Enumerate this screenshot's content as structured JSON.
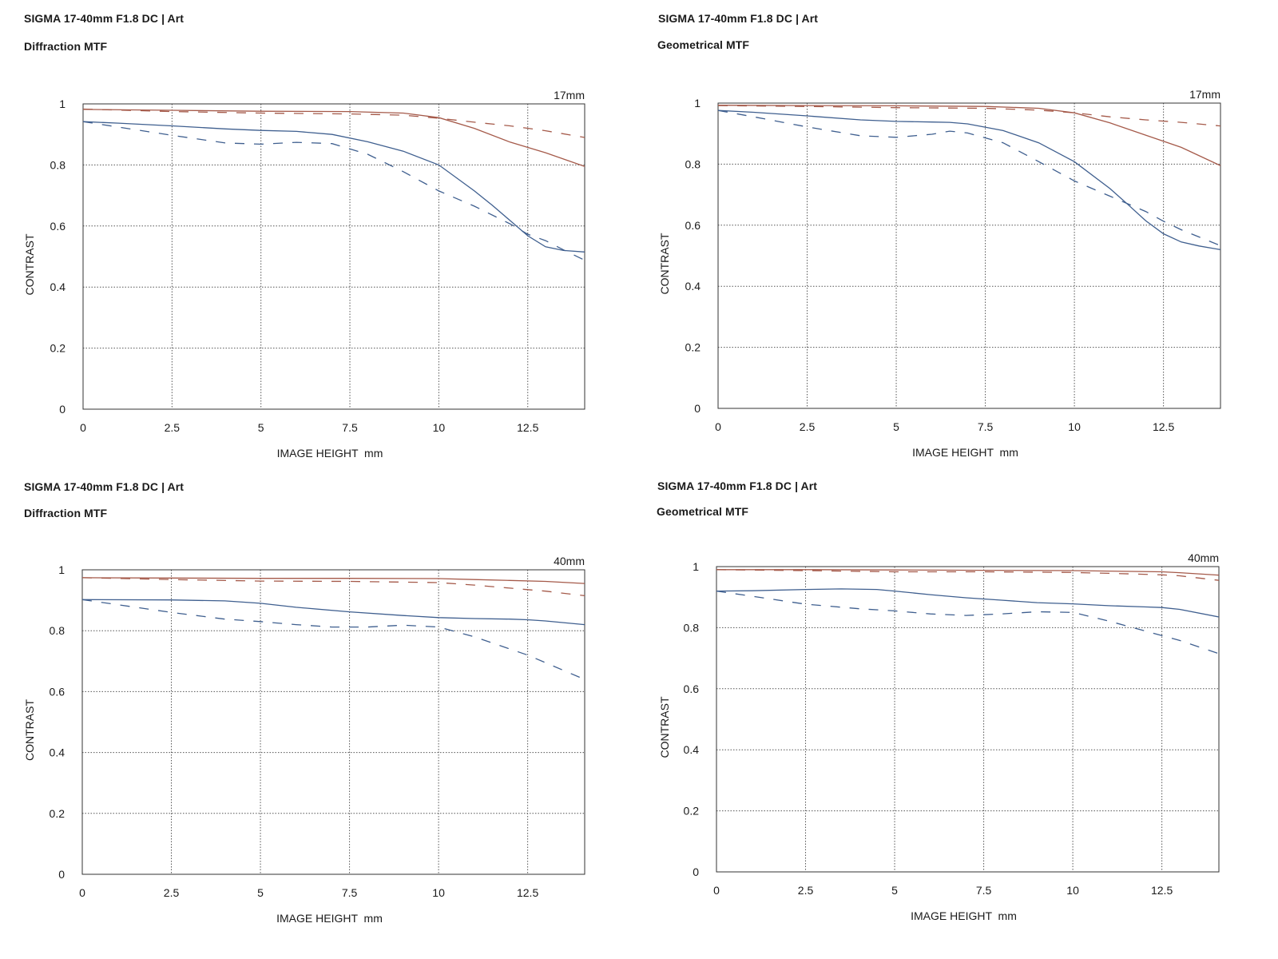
{
  "colors": {
    "sagittal": "#a55a4a",
    "meridional": "#3f5f8f",
    "grid": "#555555",
    "axis": "#333333"
  },
  "chart_data": [
    {
      "type": "line",
      "title": "SIGMA 17-40mm F1.8 DC | Art",
      "subtitle": "Diffraction MTF",
      "focal_length": "17mm",
      "xlabel": "IMAGE HEIGHT  mm",
      "ylabel": "CONTRAST",
      "xlim": [
        0,
        14.1
      ],
      "ylim": [
        0,
        1
      ],
      "x_ticks": [
        "0",
        "2.5",
        "5",
        "7.5",
        "10",
        "12.5"
      ],
      "y_ticks": [
        "0",
        "0.2",
        "0.4",
        "0.6",
        "0.8",
        "1"
      ],
      "grid": true,
      "series": [
        {
          "color": "sagittal",
          "dash": false,
          "x": [
            0,
            2.5,
            5,
            7.5,
            9,
            10,
            11,
            12,
            13,
            14.1
          ],
          "y": [
            0.982,
            0.979,
            0.976,
            0.975,
            0.97,
            0.955,
            0.92,
            0.875,
            0.84,
            0.795
          ]
        },
        {
          "color": "sagittal",
          "dash": true,
          "x": [
            0,
            2.5,
            5,
            7.5,
            9,
            10,
            11,
            12,
            13,
            14.1
          ],
          "y": [
            0.983,
            0.975,
            0.97,
            0.967,
            0.963,
            0.953,
            0.94,
            0.928,
            0.912,
            0.89
          ]
        },
        {
          "color": "meridional",
          "dash": false,
          "x": [
            0,
            1,
            2.5,
            4,
            5,
            6,
            7,
            8,
            9,
            10,
            11,
            11.5,
            12,
            12.5,
            13,
            13.5,
            14.1
          ],
          "y": [
            0.942,
            0.937,
            0.928,
            0.918,
            0.913,
            0.91,
            0.9,
            0.876,
            0.845,
            0.8,
            0.715,
            0.668,
            0.618,
            0.568,
            0.532,
            0.52,
            0.515
          ]
        },
        {
          "color": "meridional",
          "dash": true,
          "x": [
            0,
            1.5,
            2.5,
            4,
            5,
            6,
            7,
            8,
            9,
            10,
            11,
            12,
            12.5,
            13,
            13.5,
            14.1
          ],
          "y": [
            0.942,
            0.915,
            0.897,
            0.872,
            0.868,
            0.874,
            0.87,
            0.835,
            0.778,
            0.715,
            0.665,
            0.607,
            0.573,
            0.552,
            0.522,
            0.488
          ]
        }
      ]
    },
    {
      "type": "line",
      "title": "SIGMA 17-40mm F1.8 DC | Art",
      "subtitle": "Geometrical MTF",
      "focal_length": "17mm",
      "xlabel": "IMAGE HEIGHT  mm",
      "ylabel": "CONTRAST",
      "xlim": [
        0,
        14.1
      ],
      "ylim": [
        0,
        1
      ],
      "x_ticks": [
        "0",
        "2.5",
        "5",
        "7.5",
        "10",
        "12.5"
      ],
      "y_ticks": [
        "0",
        "0.2",
        "0.4",
        "0.6",
        "0.8",
        "1"
      ],
      "grid": true,
      "series": [
        {
          "color": "sagittal",
          "dash": false,
          "x": [
            0,
            2.5,
            5,
            7.5,
            9,
            10,
            11,
            12,
            13,
            14.1
          ],
          "y": [
            0.993,
            0.992,
            0.991,
            0.989,
            0.983,
            0.968,
            0.935,
            0.895,
            0.855,
            0.795
          ]
        },
        {
          "color": "sagittal",
          "dash": true,
          "x": [
            0,
            2.5,
            5,
            7.5,
            9,
            10,
            11,
            12,
            13,
            14.1
          ],
          "y": [
            0.992,
            0.989,
            0.985,
            0.983,
            0.977,
            0.968,
            0.955,
            0.945,
            0.937,
            0.925
          ]
        },
        {
          "color": "meridional",
          "dash": false,
          "x": [
            0,
            1,
            2.5,
            4,
            5,
            6,
            6.5,
            7,
            8,
            9,
            10,
            11,
            11.5,
            12,
            12.5,
            13,
            13.5,
            14.1
          ],
          "y": [
            0.976,
            0.97,
            0.958,
            0.945,
            0.94,
            0.938,
            0.937,
            0.932,
            0.91,
            0.87,
            0.808,
            0.72,
            0.668,
            0.615,
            0.572,
            0.545,
            0.532,
            0.52
          ]
        },
        {
          "color": "meridional",
          "dash": true,
          "x": [
            0,
            1,
            2.5,
            4,
            5,
            6,
            6.5,
            7,
            8,
            9,
            10,
            11,
            12,
            12.5,
            13,
            14.1
          ],
          "y": [
            0.976,
            0.955,
            0.922,
            0.893,
            0.888,
            0.898,
            0.908,
            0.902,
            0.87,
            0.808,
            0.745,
            0.695,
            0.645,
            0.613,
            0.585,
            0.533
          ]
        }
      ]
    },
    {
      "type": "line",
      "title": "SIGMA 17-40mm F1.8 DC | Art",
      "subtitle": "Diffraction MTF",
      "focal_length": "40mm",
      "xlabel": "IMAGE HEIGHT  mm",
      "ylabel": "CONTRAST",
      "xlim": [
        0,
        14.1
      ],
      "ylim": [
        0,
        1
      ],
      "x_ticks": [
        "0",
        "2.5",
        "5",
        "7.5",
        "10",
        "12.5"
      ],
      "y_ticks": [
        "0",
        "0.2",
        "0.4",
        "0.6",
        "0.8",
        "1"
      ],
      "grid": true,
      "series": [
        {
          "color": "sagittal",
          "dash": false,
          "x": [
            0,
            2.5,
            5,
            7.5,
            10,
            11,
            12,
            13,
            14.1
          ],
          "y": [
            0.974,
            0.973,
            0.972,
            0.972,
            0.971,
            0.968,
            0.965,
            0.962,
            0.955
          ]
        },
        {
          "color": "sagittal",
          "dash": true,
          "x": [
            0,
            2.5,
            5,
            7.5,
            10,
            11,
            12,
            13,
            14.1
          ],
          "y": [
            0.974,
            0.968,
            0.963,
            0.962,
            0.958,
            0.95,
            0.94,
            0.93,
            0.915
          ]
        },
        {
          "color": "meridional",
          "dash": false,
          "x": [
            0,
            2.5,
            4,
            5,
            6,
            7.5,
            9,
            10,
            11,
            12,
            12.5,
            13,
            14.1
          ],
          "y": [
            0.902,
            0.901,
            0.898,
            0.89,
            0.877,
            0.862,
            0.85,
            0.843,
            0.84,
            0.838,
            0.836,
            0.832,
            0.82
          ]
        },
        {
          "color": "meridional",
          "dash": true,
          "x": [
            0,
            2.5,
            4,
            5,
            6,
            7,
            8,
            9,
            10,
            11,
            12,
            12.5,
            13,
            14.1
          ],
          "y": [
            0.902,
            0.86,
            0.838,
            0.83,
            0.82,
            0.812,
            0.812,
            0.818,
            0.812,
            0.78,
            0.74,
            0.72,
            0.695,
            0.64
          ]
        }
      ]
    },
    {
      "type": "line",
      "title": "SIGMA 17-40mm F1.8 DC | Art",
      "subtitle": "Geometrical MTF",
      "focal_length": "40mm",
      "xlabel": "IMAGE HEIGHT  mm",
      "ylabel": "CONTRAST",
      "xlim": [
        0,
        14.1
      ],
      "ylim": [
        0,
        1
      ],
      "x_ticks": [
        "0",
        "2.5",
        "5",
        "7.5",
        "10",
        "12.5"
      ],
      "y_ticks": [
        "0",
        "0.2",
        "0.4",
        "0.6",
        "0.8",
        "1"
      ],
      "grid": true,
      "series": [
        {
          "color": "sagittal",
          "dash": false,
          "x": [
            0,
            2.5,
            5,
            7.5,
            10,
            12.5,
            13,
            14.1
          ],
          "y": [
            0.99,
            0.99,
            0.989,
            0.988,
            0.987,
            0.983,
            0.98,
            0.972
          ]
        },
        {
          "color": "sagittal",
          "dash": true,
          "x": [
            0,
            2.5,
            5,
            7.5,
            10,
            11,
            12,
            12.5,
            13,
            14.1
          ],
          "y": [
            0.99,
            0.987,
            0.983,
            0.983,
            0.981,
            0.978,
            0.975,
            0.973,
            0.97,
            0.955
          ]
        },
        {
          "color": "meridional",
          "dash": false,
          "x": [
            0,
            1,
            2.5,
            3.5,
            4.5,
            5,
            6,
            7,
            8,
            9,
            10,
            11,
            12,
            12.5,
            13,
            14.1
          ],
          "y": [
            0.92,
            0.921,
            0.925,
            0.927,
            0.925,
            0.92,
            0.908,
            0.898,
            0.89,
            0.882,
            0.878,
            0.872,
            0.868,
            0.866,
            0.86,
            0.835
          ]
        },
        {
          "color": "meridional",
          "dash": true,
          "x": [
            0,
            1,
            2.5,
            4,
            5,
            6,
            7,
            8,
            9,
            10,
            11,
            12,
            13,
            14.1
          ],
          "y": [
            0.92,
            0.903,
            0.877,
            0.862,
            0.855,
            0.845,
            0.84,
            0.845,
            0.852,
            0.85,
            0.822,
            0.79,
            0.758,
            0.715
          ]
        }
      ]
    }
  ]
}
